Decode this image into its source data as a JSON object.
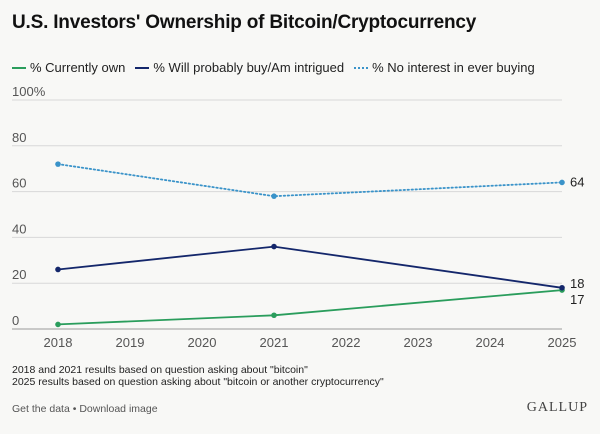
{
  "chart_data": {
    "type": "line",
    "title": "U.S. Investors' Ownership of Bitcoin/Cryptocurrency",
    "x": [
      2018,
      2019,
      2020,
      2021,
      2022,
      2023,
      2024,
      2025
    ],
    "ylim": [
      0,
      100
    ],
    "yticks": [
      "0",
      "20",
      "40",
      "60",
      "80",
      "100%"
    ],
    "grid": true,
    "legend_position": "top-left",
    "series": [
      {
        "name": "% Currently own",
        "color": "#2a9d5c",
        "style": "solid",
        "x": [
          2018,
          2021,
          2025
        ],
        "values": [
          2,
          6,
          17
        ]
      },
      {
        "name": "% Will probably buy/Am intrigued",
        "color": "#14276b",
        "style": "solid",
        "x": [
          2018,
          2021,
          2025
        ],
        "values": [
          26,
          36,
          18
        ]
      },
      {
        "name": "% No interest in ever buying",
        "color": "#3a93c9",
        "style": "dotted",
        "x": [
          2018,
          2021,
          2025
        ],
        "values": [
          72,
          58,
          64
        ]
      }
    ],
    "end_labels": [
      "64",
      "18",
      "17"
    ]
  },
  "notes": [
    "2018 and 2021 results based on question asking about \"bitcoin\"",
    "2025 results based on question asking about \"bitcoin or another cryptocurrency\""
  ],
  "footer": {
    "get_data": "Get the data",
    "separator": "•",
    "download": "Download image",
    "brand": "GALLUP"
  }
}
